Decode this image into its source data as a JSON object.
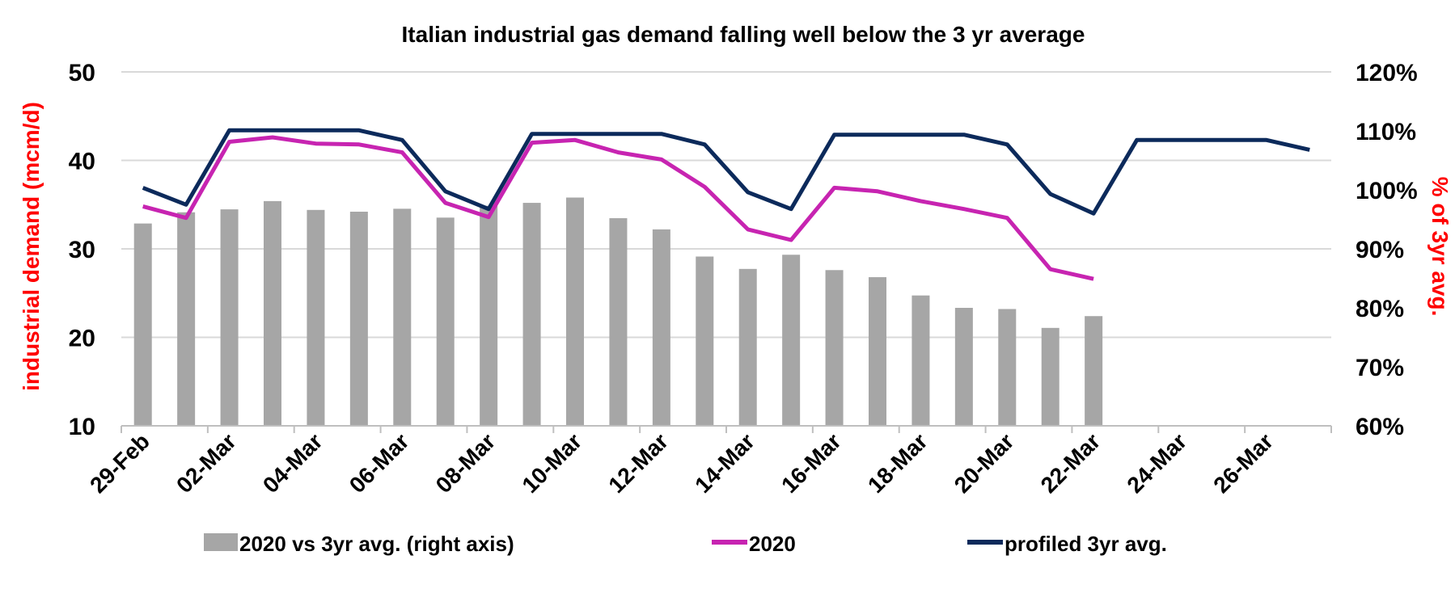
{
  "chart_data": {
    "type": "bar",
    "title": "Italian industrial gas demand falling well below the 3 yr average",
    "ylabel": "industrial demand (mcm/d)",
    "y2label": "% of 3yr avg.",
    "ylim": [
      10,
      50
    ],
    "y2lim": [
      0.6,
      1.2
    ],
    "yticks": [
      "10",
      "20",
      "30",
      "40",
      "50"
    ],
    "y2ticks": [
      "60%",
      "70%",
      "80%",
      "90%",
      "100%",
      "110%",
      "120%"
    ],
    "grid": true,
    "legend_position": "bottom",
    "x": [
      "29-Feb",
      "01-Mar",
      "02-Mar",
      "03-Mar",
      "04-Mar",
      "05-Mar",
      "06-Mar",
      "07-Mar",
      "08-Mar",
      "09-Mar",
      "10-Mar",
      "11-Mar",
      "12-Mar",
      "13-Mar",
      "14-Mar",
      "15-Mar",
      "16-Mar",
      "17-Mar",
      "18-Mar",
      "19-Mar",
      "20-Mar",
      "21-Mar",
      "22-Mar",
      "23-Mar",
      "24-Mar",
      "25-Mar",
      "26-Mar",
      "27-Mar"
    ],
    "xtick_labels": [
      "29-Feb",
      "02-Mar",
      "04-Mar",
      "06-Mar",
      "08-Mar",
      "10-Mar",
      "12-Mar",
      "14-Mar",
      "16-Mar",
      "18-Mar",
      "20-Mar",
      "22-Mar",
      "24-Mar",
      "26-Mar"
    ],
    "series": [
      {
        "name": "2020 vs 3yr avg. (right axis)",
        "type": "bar",
        "axis": "right",
        "color": "#a6a6a6",
        "values": [
          0.943,
          0.962,
          0.967,
          0.981,
          0.966,
          0.963,
          0.968,
          0.953,
          0.973,
          0.978,
          0.987,
          0.952,
          0.933,
          0.887,
          0.866,
          0.89,
          0.864,
          0.852,
          0.821,
          0.8,
          0.798,
          0.766,
          0.786,
          null,
          null,
          null,
          null,
          null
        ]
      },
      {
        "name": "2020",
        "type": "line",
        "axis": "left",
        "color": "#c724b1",
        "values": [
          34.8,
          33.5,
          42.1,
          42.6,
          41.9,
          41.8,
          40.9,
          35.2,
          33.6,
          42.0,
          42.3,
          40.9,
          40.1,
          37.0,
          32.2,
          31.0,
          36.9,
          36.5,
          35.4,
          34.5,
          33.5,
          27.7,
          26.6,
          null,
          null,
          null,
          null,
          null
        ]
      },
      {
        "name": "profiled 3yr avg.",
        "type": "line",
        "axis": "left",
        "color": "#0c2a5b",
        "values": [
          36.9,
          35.0,
          43.4,
          43.4,
          43.4,
          43.4,
          42.3,
          36.5,
          34.5,
          43.0,
          43.0,
          43.0,
          43.0,
          41.8,
          36.4,
          34.5,
          42.9,
          42.9,
          42.9,
          42.9,
          41.8,
          36.2,
          34.0,
          42.3,
          42.3,
          42.3,
          42.3,
          41.2
        ]
      }
    ]
  }
}
